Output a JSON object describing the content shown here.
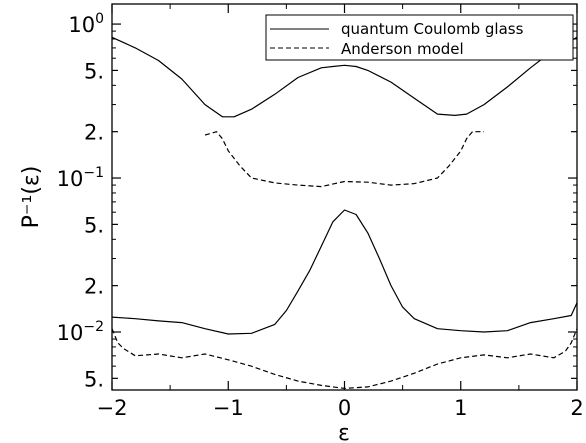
{
  "chart_data": {
    "type": "line",
    "xlabel": "ε",
    "ylabel": "P⁻¹(ε)",
    "xlim": [
      -2,
      2
    ],
    "ylim": [
      0.0042,
      1.35
    ],
    "yscale": "log",
    "grid": false,
    "legend_position": "top-right",
    "x_ticks": [
      {
        "value": -2,
        "label": "−2"
      },
      {
        "value": -1,
        "label": "−1"
      },
      {
        "value": 0,
        "label": "0"
      },
      {
        "value": 1,
        "label": "1"
      },
      {
        "value": 2,
        "label": "2"
      }
    ],
    "y_ticks": [
      {
        "value": 1.0,
        "base": "10",
        "exp": "0"
      },
      {
        "value": 0.5,
        "label": "5."
      },
      {
        "value": 0.2,
        "label": "2."
      },
      {
        "value": 0.1,
        "base": "10",
        "exp": "−1"
      },
      {
        "value": 0.05,
        "label": "5."
      },
      {
        "value": 0.02,
        "label": "2."
      },
      {
        "value": 0.01,
        "base": "10",
        "exp": "−2"
      },
      {
        "value": 0.005,
        "label": "5."
      }
    ],
    "series": [
      {
        "name": "quantum Coulomb glass",
        "style": "solid",
        "group": "upper",
        "x": [
          -2.0,
          -1.8,
          -1.6,
          -1.4,
          -1.2,
          -1.05,
          -0.95,
          -0.8,
          -0.6,
          -0.4,
          -0.2,
          -0.1,
          0.0,
          0.1,
          0.2,
          0.4,
          0.6,
          0.8,
          0.95,
          1.05,
          1.2,
          1.4,
          1.6,
          1.8,
          2.0
        ],
        "y": [
          0.82,
          0.7,
          0.58,
          0.44,
          0.3,
          0.25,
          0.25,
          0.28,
          0.35,
          0.45,
          0.52,
          0.53,
          0.54,
          0.53,
          0.5,
          0.42,
          0.33,
          0.26,
          0.255,
          0.26,
          0.3,
          0.39,
          0.52,
          0.68,
          0.82
        ]
      },
      {
        "name": "Anderson model",
        "style": "dashed",
        "group": "upper",
        "x": [
          -1.2,
          -1.1,
          -1.05,
          -1.0,
          -0.9,
          -0.8,
          -0.6,
          -0.4,
          -0.2,
          0.0,
          0.2,
          0.4,
          0.6,
          0.8,
          0.9,
          1.0,
          1.05,
          1.1,
          1.2
        ],
        "y": [
          0.19,
          0.2,
          0.18,
          0.15,
          0.12,
          0.1,
          0.093,
          0.09,
          0.088,
          0.095,
          0.094,
          0.09,
          0.092,
          0.1,
          0.12,
          0.15,
          0.18,
          0.2,
          0.2
        ]
      },
      {
        "name": "quantum Coulomb glass",
        "style": "solid",
        "group": "lower",
        "x": [
          -2.0,
          -1.8,
          -1.6,
          -1.4,
          -1.2,
          -1.0,
          -0.8,
          -0.6,
          -0.5,
          -0.4,
          -0.3,
          -0.2,
          -0.1,
          0.0,
          0.1,
          0.2,
          0.3,
          0.4,
          0.5,
          0.6,
          0.8,
          1.0,
          1.2,
          1.4,
          1.6,
          1.8,
          1.95,
          2.0
        ],
        "y": [
          0.0125,
          0.0122,
          0.0118,
          0.0115,
          0.0105,
          0.0097,
          0.0098,
          0.0112,
          0.0138,
          0.0185,
          0.025,
          0.036,
          0.052,
          0.062,
          0.058,
          0.044,
          0.03,
          0.02,
          0.0145,
          0.0122,
          0.0105,
          0.0102,
          0.01,
          0.0102,
          0.0115,
          0.0122,
          0.0128,
          0.0155
        ]
      },
      {
        "name": "Anderson model",
        "style": "dashed",
        "group": "lower",
        "x": [
          -2.0,
          -1.95,
          -1.9,
          -1.8,
          -1.6,
          -1.4,
          -1.2,
          -1.0,
          -0.8,
          -0.6,
          -0.4,
          -0.2,
          0.0,
          0.2,
          0.4,
          0.6,
          0.8,
          1.0,
          1.2,
          1.4,
          1.6,
          1.8,
          1.9,
          1.95,
          2.0
        ],
        "y": [
          0.0105,
          0.0085,
          0.0078,
          0.007,
          0.0072,
          0.0068,
          0.0072,
          0.0066,
          0.006,
          0.0053,
          0.0048,
          0.0045,
          0.0043,
          0.0044,
          0.0048,
          0.0054,
          0.0062,
          0.0068,
          0.0071,
          0.0068,
          0.0072,
          0.0068,
          0.0075,
          0.0085,
          0.0105
        ]
      }
    ],
    "legend": [
      {
        "label": "quantum Coulomb glass",
        "style": "solid"
      },
      {
        "label": "Anderson model",
        "style": "dashed"
      }
    ]
  }
}
